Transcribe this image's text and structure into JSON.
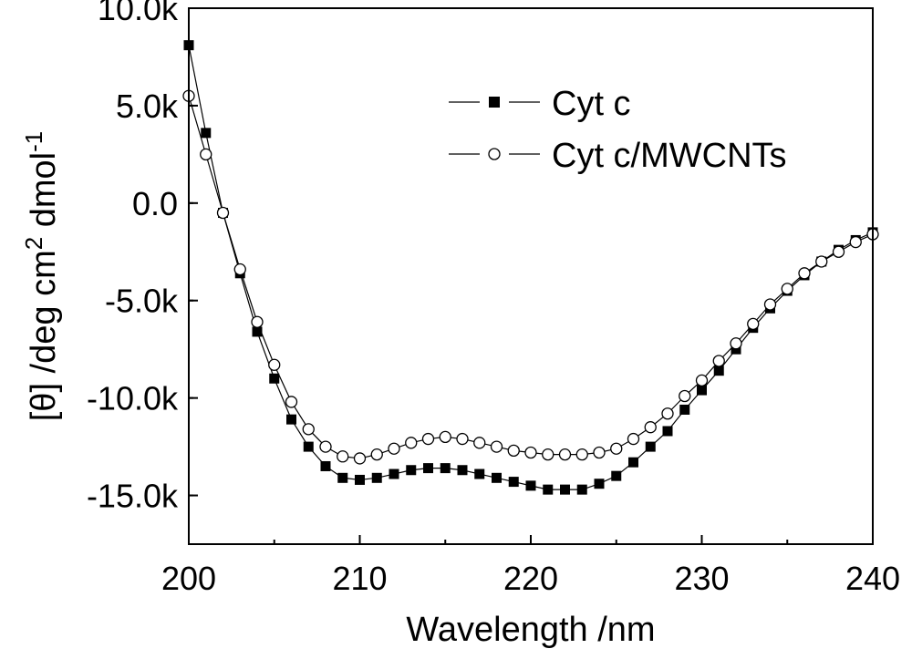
{
  "chart_data": {
    "type": "line",
    "title": "",
    "xlabel": "Wavelength /nm",
    "ylabel": {
      "prefix": "[θ] /deg cm",
      "sup1": "2",
      "mid": " dmol",
      "sup2": "-1"
    },
    "xlim": [
      200,
      240
    ],
    "ylim": [
      -17500,
      10000
    ],
    "x_ticks": [
      200,
      210,
      220,
      230,
      240
    ],
    "x_tick_labels": [
      "200",
      "210",
      "220",
      "230",
      "240"
    ],
    "y_ticks": [
      10000,
      5000,
      0,
      -5000,
      -10000,
      -15000
    ],
    "y_tick_labels": [
      "10.0k",
      "5.0k",
      "0.0",
      "-5.0k",
      "-10.0k",
      "-15.0k"
    ],
    "legend_position": "top-right",
    "x": [
      200,
      201,
      202,
      203,
      204,
      205,
      206,
      207,
      208,
      209,
      210,
      211,
      212,
      213,
      214,
      215,
      216,
      217,
      218,
      219,
      220,
      221,
      222,
      223,
      224,
      225,
      226,
      227,
      228,
      229,
      230,
      231,
      232,
      233,
      234,
      235,
      236,
      237,
      238,
      239,
      240
    ],
    "series": [
      {
        "name": "Cyt c",
        "marker": "filled-square",
        "values": [
          8100,
          3600,
          -500,
          -3600,
          -6600,
          -9000,
          -11100,
          -12500,
          -13500,
          -14100,
          -14200,
          -14100,
          -13900,
          -13700,
          -13600,
          -13600,
          -13700,
          -13900,
          -14100,
          -14300,
          -14500,
          -14700,
          -14700,
          -14700,
          -14400,
          -14000,
          -13300,
          -12500,
          -11700,
          -10600,
          -9600,
          -8600,
          -7500,
          -6400,
          -5400,
          -4500,
          -3700,
          -3000,
          -2400,
          -1900,
          -1500
        ]
      },
      {
        "name": "Cyt c/MWCNTs",
        "marker": "open-circle",
        "values": [
          5500,
          2500,
          -500,
          -3400,
          -6100,
          -8300,
          -10200,
          -11600,
          -12500,
          -13000,
          -13100,
          -12900,
          -12600,
          -12300,
          -12100,
          -12000,
          -12100,
          -12300,
          -12500,
          -12700,
          -12800,
          -12900,
          -12900,
          -12900,
          -12800,
          -12600,
          -12100,
          -11500,
          -10800,
          -9900,
          -9100,
          -8100,
          -7200,
          -6200,
          -5200,
          -4400,
          -3600,
          -3000,
          -2500,
          -2000,
          -1600
        ]
      }
    ]
  }
}
